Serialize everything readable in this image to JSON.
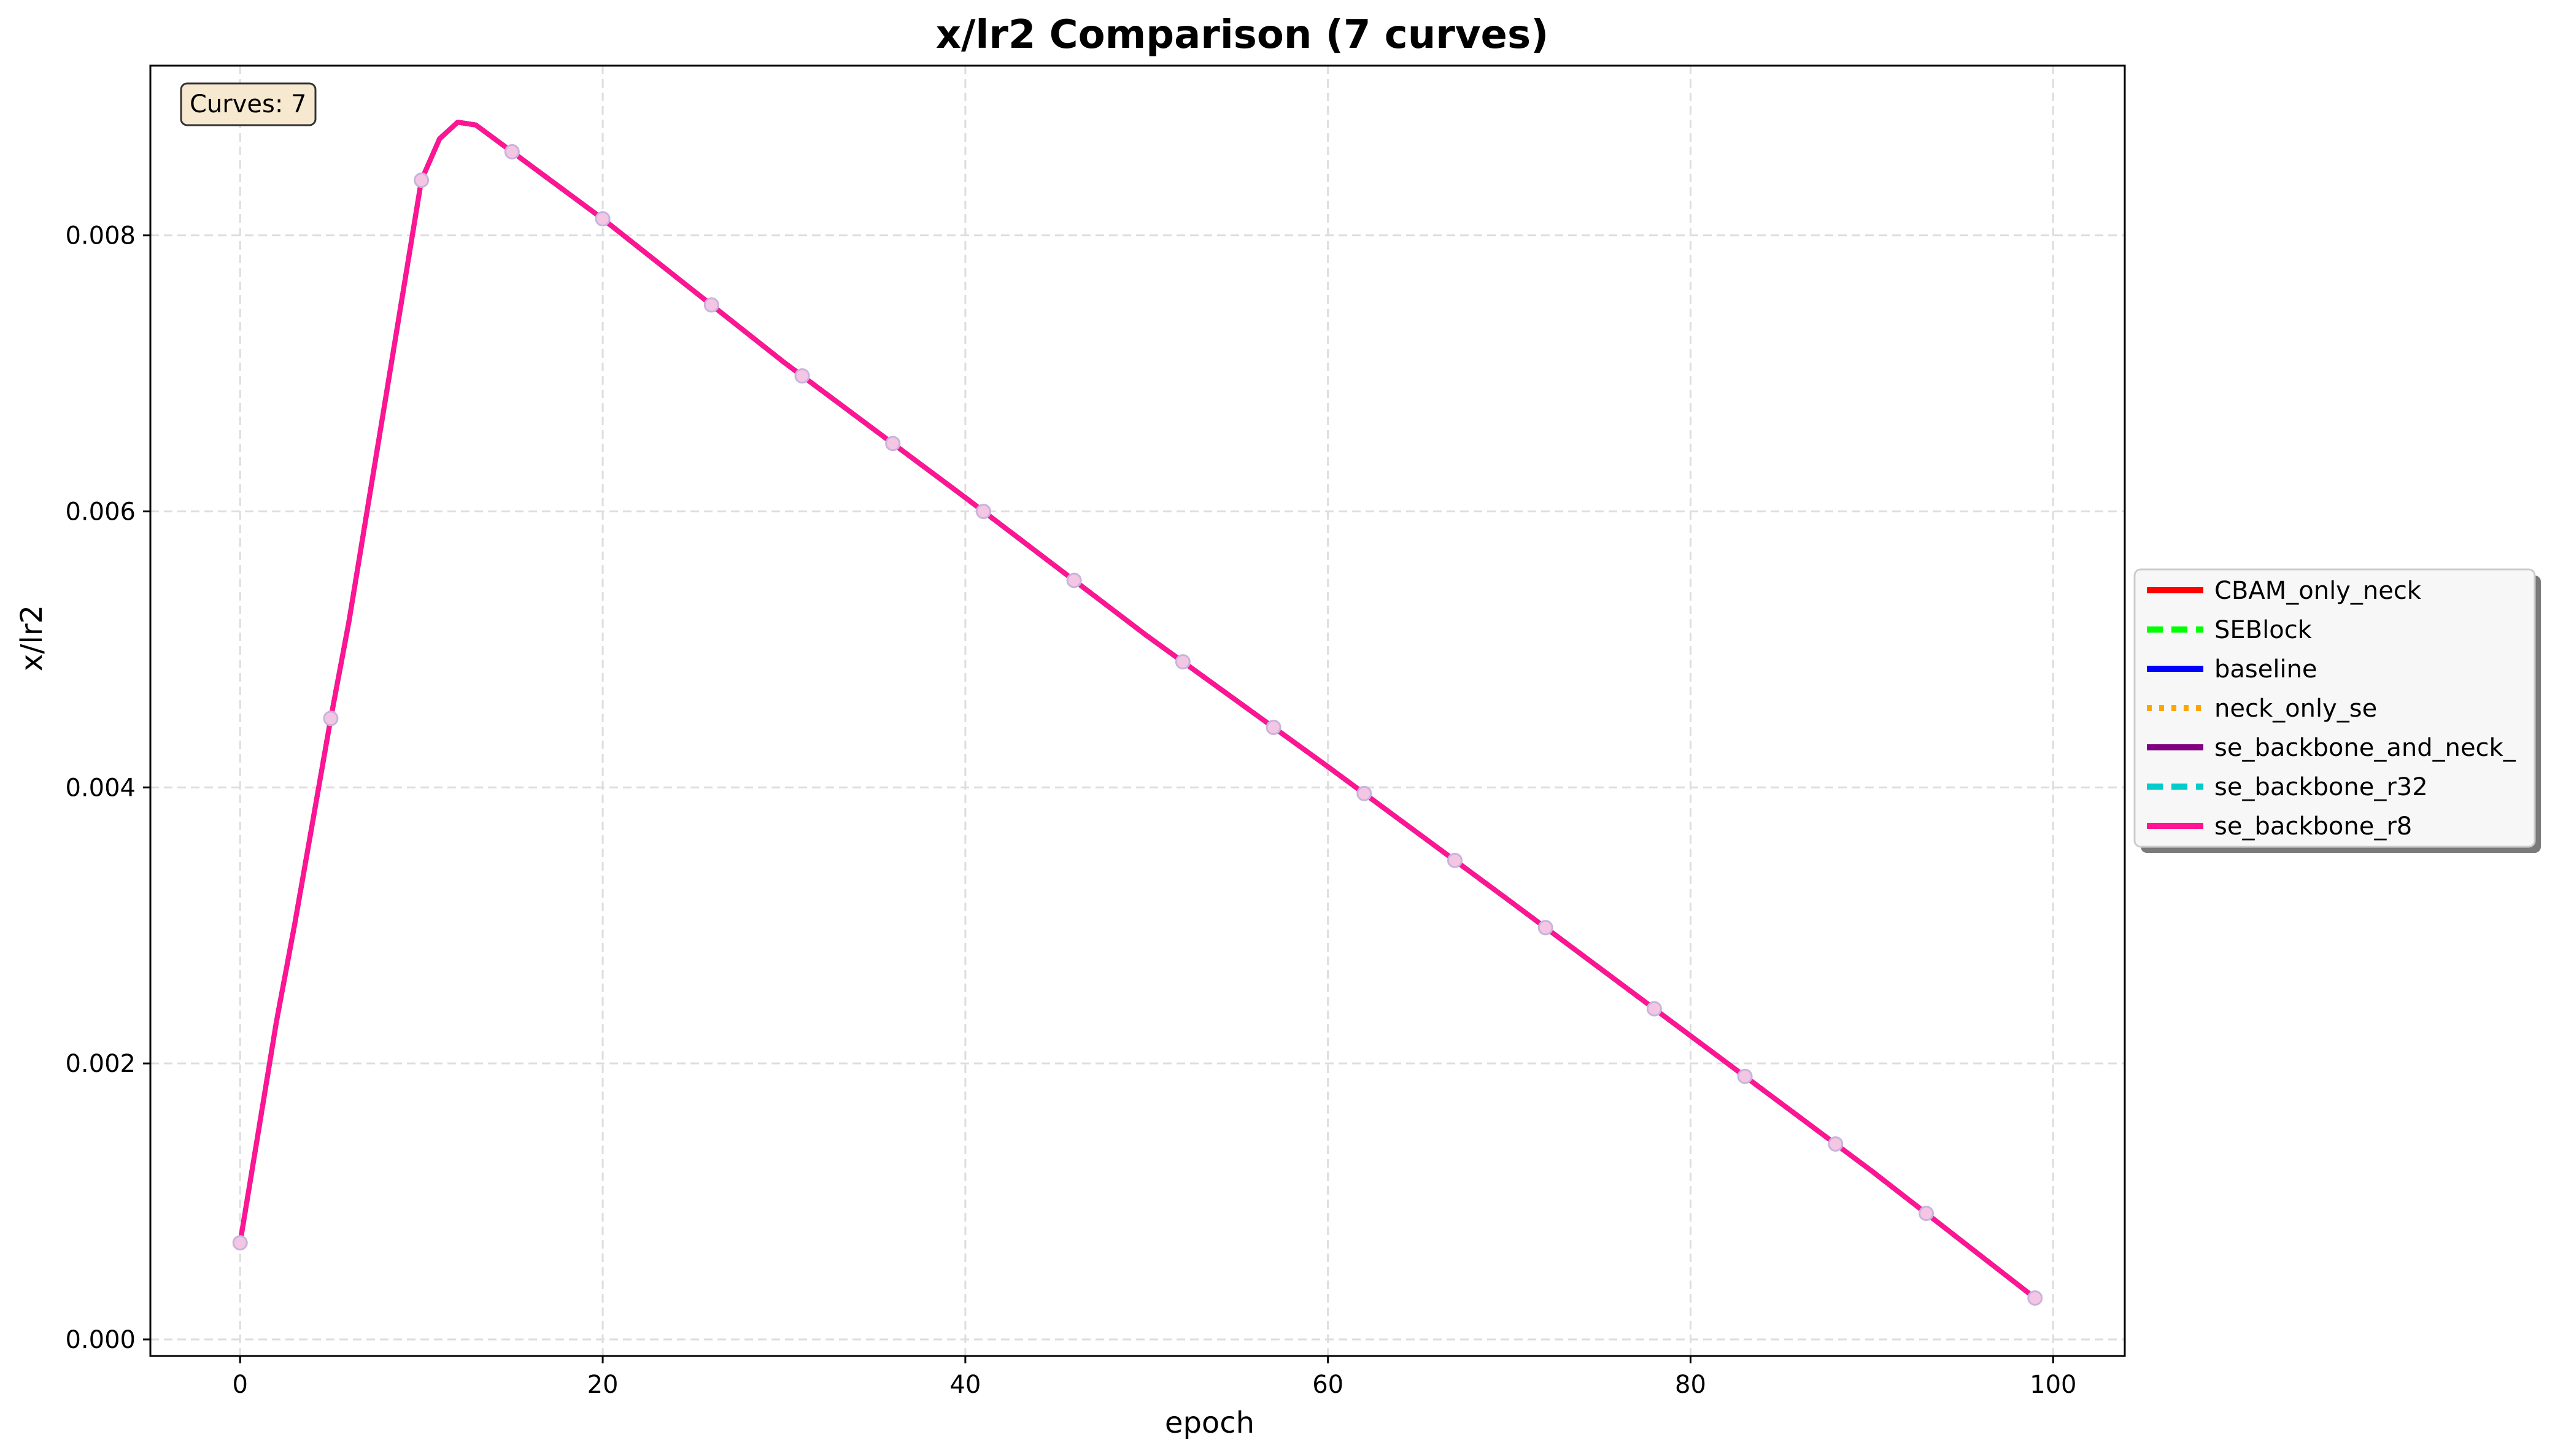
{
  "chart_data": {
    "type": "line",
    "title": "x/lr2 Comparison (7 curves)",
    "xlabel": "epoch",
    "ylabel": "x/lr2",
    "xlim": [
      -4.95,
      103.95
    ],
    "ylim": [
      -0.00012,
      0.00923
    ],
    "xticks": [
      0,
      20,
      40,
      60,
      80,
      100
    ],
    "yticks": [
      0.0,
      0.002,
      0.004,
      0.006,
      0.008
    ],
    "ytick_labels": [
      "0.000",
      "0.002",
      "0.004",
      "0.006",
      "0.008"
    ],
    "grid": true,
    "legend_placement": "outside right",
    "annotation": "Curves: 7",
    "x": [
      0,
      1,
      2,
      3,
      4,
      5,
      6,
      7,
      8,
      9,
      10,
      11,
      12,
      13,
      20,
      30,
      40,
      50,
      60,
      70,
      80,
      90,
      99
    ],
    "series": [
      {
        "name": "CBAM_only_neck",
        "color": "#ff0000",
        "style": "solid"
      },
      {
        "name": "SEBlock",
        "color": "#00ff00",
        "style": "dashed"
      },
      {
        "name": "baseline",
        "color": "#0000ff",
        "style": "solid"
      },
      {
        "name": "neck_only_se",
        "color": "#ffa500",
        "style": "dotted"
      },
      {
        "name": "se_backbone_and_neck_",
        "color": "#800080",
        "style": "solid"
      },
      {
        "name": "se_backbone_r32",
        "color": "#00cccc",
        "style": "dashed"
      },
      {
        "name": "se_backbone_r8",
        "color": "#ff1493",
        "style": "solid"
      }
    ],
    "values": [
      0.0007,
      0.0015,
      0.0023,
      0.003,
      0.00375,
      0.0045,
      0.0052,
      0.006,
      0.0068,
      0.0076,
      0.0084,
      0.0087,
      0.00882,
      0.0088,
      0.00812,
      0.00708,
      0.0061,
      0.0051,
      0.00415,
      0.00318,
      0.0022,
      0.00122,
      0.0003
    ]
  }
}
